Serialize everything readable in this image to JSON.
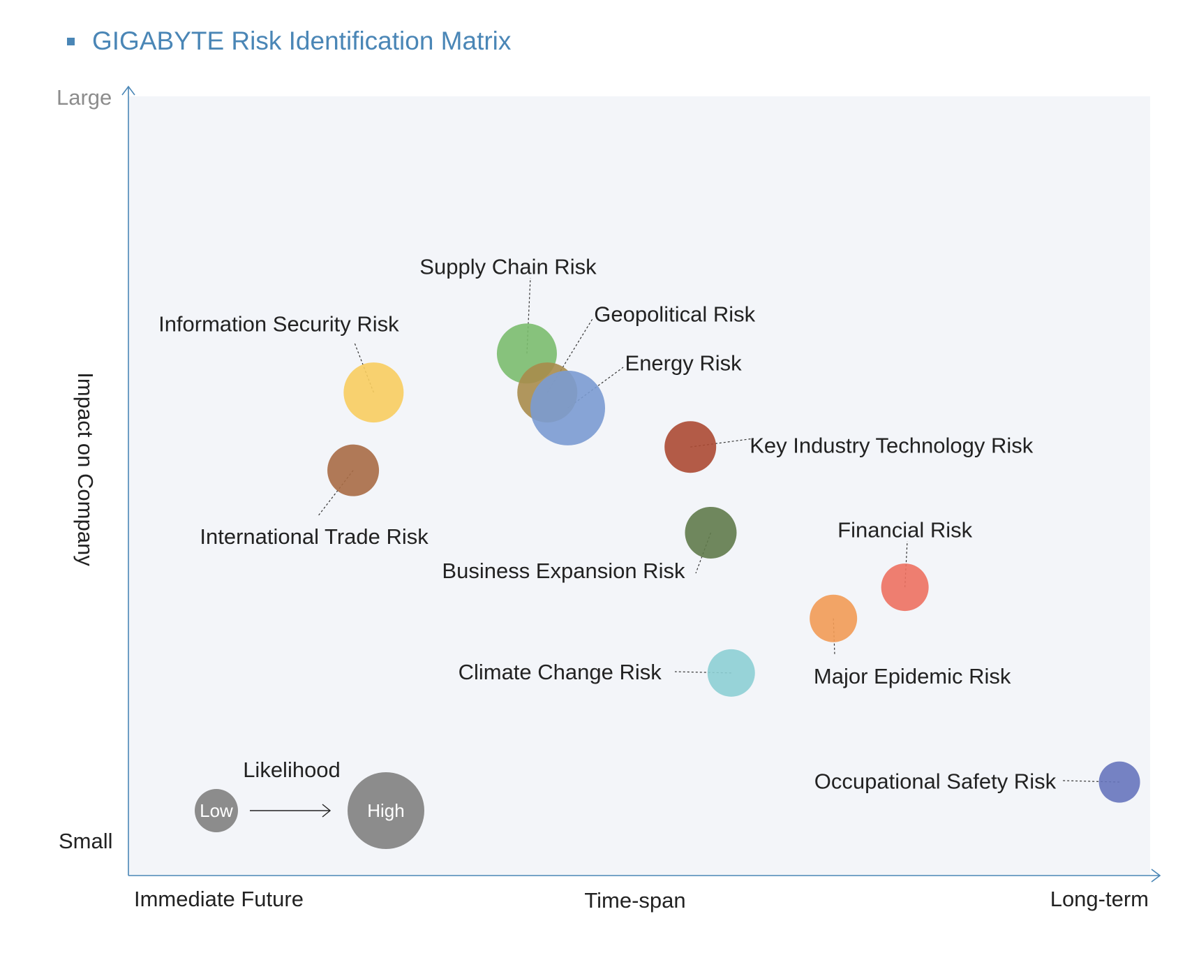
{
  "title": "GIGABYTE Risk Identification Matrix",
  "colors": {
    "title": "#4a86b6",
    "axis": "#4a86b6",
    "plot_background": "#f3f5f9",
    "legend_bubble": "#8c8c8c"
  },
  "chart_data": {
    "type": "scatter",
    "title": "GIGABYTE Risk Identification Matrix",
    "xlabel": "Time-span",
    "ylabel": "Impact on Company",
    "x_ends": [
      "Immediate Future",
      "Long-term"
    ],
    "y_ends": [
      "Large",
      "Small"
    ],
    "xlim": [
      0,
      100
    ],
    "ylim": [
      0,
      100
    ],
    "grid": false,
    "legend": {
      "title": "Likelihood",
      "low_label": "Low",
      "high_label": "High",
      "placement": "bottom-left"
    },
    "points": [
      {
        "name": "Supply Chain Risk",
        "x": 39,
        "y": 67,
        "likelihood": 0.44,
        "color": "#7bbd6e"
      },
      {
        "name": "Geopolitical Risk",
        "x": 41,
        "y": 62,
        "likelihood": 0.44,
        "color": "#a98c4b"
      },
      {
        "name": "Energy Risk",
        "x": 43,
        "y": 60,
        "likelihood": 0.58,
        "color": "#7b9bd2"
      },
      {
        "name": "Information Security Risk",
        "x": 24,
        "y": 62,
        "likelihood": 0.44,
        "color": "#f8cd5f"
      },
      {
        "name": "International Trade Risk",
        "x": 22,
        "y": 52,
        "likelihood": 0.36,
        "color": "#a86b45"
      },
      {
        "name": "Key Industry Technology Risk",
        "x": 55,
        "y": 55,
        "likelihood": 0.36,
        "color": "#ac4a33"
      },
      {
        "name": "Business Expansion Risk",
        "x": 57,
        "y": 44,
        "likelihood": 0.36,
        "color": "#617b4b"
      },
      {
        "name": "Financial Risk",
        "x": 76,
        "y": 37,
        "likelihood": 0.32,
        "color": "#ed7161"
      },
      {
        "name": "Major Epidemic Risk",
        "x": 69,
        "y": 33,
        "likelihood": 0.32,
        "color": "#f29b55"
      },
      {
        "name": "Climate Change Risk",
        "x": 59,
        "y": 26,
        "likelihood": 0.32,
        "color": "#8dcfd4"
      },
      {
        "name": "Occupational Safety Risk",
        "x": 97,
        "y": 12,
        "likelihood": 0.26,
        "color": "#6775bd"
      }
    ]
  }
}
